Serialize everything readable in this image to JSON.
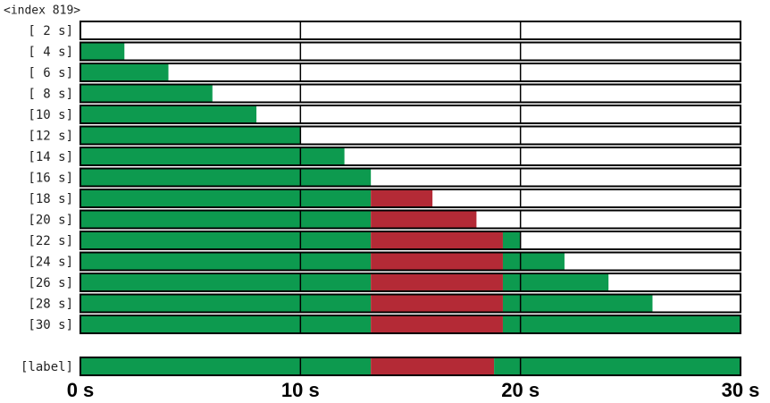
{
  "chart_data": {
    "type": "timeline",
    "title": "<index 819>",
    "xlim": [
      0,
      30
    ],
    "xticks": [
      {
        "value": 0,
        "label": "0 s"
      },
      {
        "value": 10,
        "label": "10 s"
      },
      {
        "value": 20,
        "label": "20 s"
      },
      {
        "value": 30,
        "label": "30 s"
      }
    ],
    "grid": true,
    "rows": [
      {
        "label": "[ 2 s]",
        "segments": []
      },
      {
        "label": "[ 4 s]",
        "segments": [
          {
            "start": 0,
            "end": 2,
            "color": "#0d9a4f"
          }
        ]
      },
      {
        "label": "[ 6 s]",
        "segments": [
          {
            "start": 0,
            "end": 4,
            "color": "#0d9a4f"
          }
        ]
      },
      {
        "label": "[ 8 s]",
        "segments": [
          {
            "start": 0,
            "end": 6,
            "color": "#0d9a4f"
          }
        ]
      },
      {
        "label": "[10 s]",
        "segments": [
          {
            "start": 0,
            "end": 8,
            "color": "#0d9a4f"
          }
        ]
      },
      {
        "label": "[12 s]",
        "segments": [
          {
            "start": 0,
            "end": 10,
            "color": "#0d9a4f"
          }
        ]
      },
      {
        "label": "[14 s]",
        "segments": [
          {
            "start": 0,
            "end": 12,
            "color": "#0d9a4f"
          }
        ]
      },
      {
        "label": "[16 s]",
        "segments": [
          {
            "start": 0,
            "end": 13.2,
            "color": "#0d9a4f"
          }
        ]
      },
      {
        "label": "[18 s]",
        "segments": [
          {
            "start": 0,
            "end": 13.2,
            "color": "#0d9a4f"
          },
          {
            "start": 13.2,
            "end": 16,
            "color": "#b42a36"
          }
        ]
      },
      {
        "label": "[20 s]",
        "segments": [
          {
            "start": 0,
            "end": 13.2,
            "color": "#0d9a4f"
          },
          {
            "start": 13.2,
            "end": 18,
            "color": "#b42a36"
          }
        ]
      },
      {
        "label": "[22 s]",
        "segments": [
          {
            "start": 0,
            "end": 13.2,
            "color": "#0d9a4f"
          },
          {
            "start": 13.2,
            "end": 19.2,
            "color": "#b42a36"
          },
          {
            "start": 19.2,
            "end": 20,
            "color": "#0d9a4f"
          }
        ]
      },
      {
        "label": "[24 s]",
        "segments": [
          {
            "start": 0,
            "end": 13.2,
            "color": "#0d9a4f"
          },
          {
            "start": 13.2,
            "end": 19.2,
            "color": "#b42a36"
          },
          {
            "start": 19.2,
            "end": 22,
            "color": "#0d9a4f"
          }
        ]
      },
      {
        "label": "[26 s]",
        "segments": [
          {
            "start": 0,
            "end": 13.2,
            "color": "#0d9a4f"
          },
          {
            "start": 13.2,
            "end": 19.2,
            "color": "#b42a36"
          },
          {
            "start": 19.2,
            "end": 24,
            "color": "#0d9a4f"
          }
        ]
      },
      {
        "label": "[28 s]",
        "segments": [
          {
            "start": 0,
            "end": 13.2,
            "color": "#0d9a4f"
          },
          {
            "start": 13.2,
            "end": 19.2,
            "color": "#b42a36"
          },
          {
            "start": 19.2,
            "end": 26,
            "color": "#0d9a4f"
          }
        ]
      },
      {
        "label": "[30 s]",
        "segments": [
          {
            "start": 0,
            "end": 13.2,
            "color": "#0d9a4f"
          },
          {
            "start": 13.2,
            "end": 19.2,
            "color": "#b42a36"
          },
          {
            "start": 19.2,
            "end": 30,
            "color": "#0d9a4f"
          }
        ]
      }
    ],
    "reference": {
      "label": "[label]",
      "segments": [
        {
          "start": 0,
          "end": 13.2,
          "color": "#0d9a4f"
        },
        {
          "start": 13.2,
          "end": 18.8,
          "color": "#b42a36"
        },
        {
          "start": 18.8,
          "end": 30,
          "color": "#0d9a4f"
        }
      ]
    }
  }
}
